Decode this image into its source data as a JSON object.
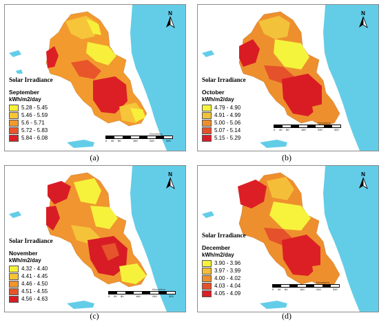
{
  "legend_title": "Solar Irradiance",
  "unit": "kWh/m2/day",
  "north_label": "N",
  "scale": {
    "unit_label": "Kilometers",
    "ticks": [
      "0",
      "40",
      "80",
      "160",
      "240",
      "320"
    ]
  },
  "panels": [
    {
      "caption": "(a)",
      "month": "September",
      "classes": [
        {
          "range": "5.28 - 5.45",
          "color": "#f7ef3a"
        },
        {
          "range": "5.46 - 5.59",
          "color": "#f6c53a"
        },
        {
          "range": "5.6 - 5.71",
          "color": "#f29a2e"
        },
        {
          "range": "5.72 - 5.83",
          "color": "#e9552b"
        },
        {
          "range": "5.84 - 6.08",
          "color": "#dc1f25"
        }
      ]
    },
    {
      "caption": "(b)",
      "month": "October",
      "classes": [
        {
          "range": "4.79 - 4.90",
          "color": "#f5f43c"
        },
        {
          "range": "4.91 - 4.99",
          "color": "#f2c23a"
        },
        {
          "range": "5.00 - 5.06",
          "color": "#ee8f2e"
        },
        {
          "range": "5.07 - 5.14",
          "color": "#e4512a"
        },
        {
          "range": "5.15 - 5.29",
          "color": "#d91c24"
        }
      ]
    },
    {
      "caption": "(c)",
      "month": "November",
      "classes": [
        {
          "range": "4.32 - 4.40",
          "color": "#f6f23c"
        },
        {
          "range": "4.41 - 4.45",
          "color": "#f5c33a"
        },
        {
          "range": "4.46 - 4.50",
          "color": "#f09530"
        },
        {
          "range": "4.51 - 4.55",
          "color": "#e6542b"
        },
        {
          "range": "4.56 - 4.63",
          "color": "#d81c25"
        }
      ]
    },
    {
      "caption": "(d)",
      "month": "December",
      "classes": [
        {
          "range": "3.90 - 3.96",
          "color": "#f7f23c"
        },
        {
          "range": "3.97 - 3.99",
          "color": "#f5be38"
        },
        {
          "range": "4.00 - 4.02",
          "color": "#ee8f2e"
        },
        {
          "range": "4.03 - 4.04",
          "color": "#e4512a"
        },
        {
          "range": "4.05 - 4.09",
          "color": "#dc1f25"
        }
      ]
    }
  ],
  "colors": {
    "sea": "#63cde8",
    "land": "#ffffff",
    "border": "#8a8a8a"
  }
}
